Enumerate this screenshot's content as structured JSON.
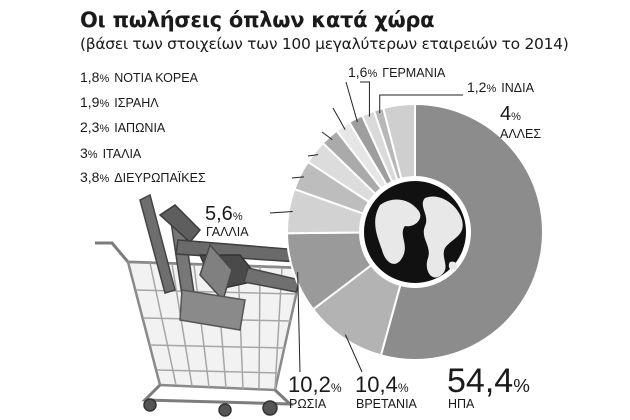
{
  "chart_data": {
    "type": "pie",
    "title": "Οι πωλήσεις όπλων κατά χώρα",
    "subtitle": "(βάσει των στοιχείων των 100 μεγαλύτερων εταιρειών το 2014)",
    "unit": "%",
    "slices": [
      {
        "name": "ΗΠΑ",
        "value": 54.4,
        "label_number": "54,4",
        "color": "#8c8c8c"
      },
      {
        "name": "ΒΡΕΤΑΝΙΑ",
        "value": 10.4,
        "label_number": "10,4",
        "color": "#b3b3b3"
      },
      {
        "name": "ΡΩΣΙΑ",
        "value": 10.2,
        "label_number": "10,2",
        "color": "#9a9a9a"
      },
      {
        "name": "ΓΑΛΛΙΑ",
        "value": 5.6,
        "label_number": "5,6",
        "color": "#d2d2d2"
      },
      {
        "name": "ΔΙΕΥΡΩΠΑΪΚΕΣ",
        "value": 3.8,
        "label_number": "3,8",
        "color": "#bdbdbd"
      },
      {
        "name": "ΙΤΑΛΙΑ",
        "value": 3,
        "label_number": "3",
        "color": "#dcdcdc"
      },
      {
        "name": "ΙΑΠΩΝΙΑ",
        "value": 2.3,
        "label_number": "2,3",
        "color": "#aaaaaa"
      },
      {
        "name": "ΙΣΡΑΗΛ",
        "value": 1.9,
        "label_number": "1,9",
        "color": "#e6e6e6"
      },
      {
        "name": "ΝΟΤΙΑ ΚΟΡΕΑ",
        "value": 1.8,
        "label_number": "1,8",
        "color": "#9e9e9e"
      },
      {
        "name": "ΓΕΡΜΑΝΙΑ",
        "value": 1.6,
        "label_number": "1,6",
        "color": "#dadada"
      },
      {
        "name": "ΙΝΔΙΑ",
        "value": 1.2,
        "label_number": "1,2",
        "color": "#b8b8b8"
      },
      {
        "name": "ΑΛΛΕΣ",
        "value": 4,
        "label_number": "4",
        "color": "#cfcfcf"
      }
    ]
  },
  "illustration": {
    "center_icon": "globe-icon",
    "background_image": "shopping-cart-with-rifles-icon"
  }
}
